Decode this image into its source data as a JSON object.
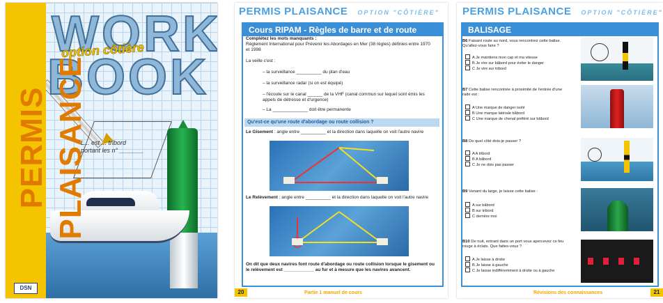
{
  "cover": {
    "sidebar_title": "PERMIS PLAISANCE",
    "title_line1": "WORK",
    "title_line2": "BOOK",
    "subtitle": "option côtière",
    "handwritten_note_line1": "L... est ... tribord",
    "handwritten_note_line2": "portant les n° _______",
    "publisher_logo": "DSN"
  },
  "page_left": {
    "header": "PERMIS PLAISANCE",
    "header_option": "OPTION \"CÔTIÈRE\"",
    "frame_title": "Cours RIPAM - Règles de barre et de route",
    "instruction": "Complétez les mots manquants :",
    "intro": "Règlement International pour Prévenir les Abordages en Mer (38 règles) définies entre 1970 et 1998",
    "watch_label": "La veille c'est :",
    "bullets": [
      "– la surveillance __________ du plan d'eau",
      "– la surveillance radar (si on est équipé)",
      "– l'écoute sur le canal ______ de la VHF (canal commun sur lequel sont émis les appels de détresse et d'urgence)",
      "– La ______________ doit être permanente"
    ],
    "section_heading": "Qu'est-ce qu'une route d'abordage ou route collision ?",
    "gisement_term": "Le Gisement",
    "gisement_text": " : angle entre __________ et la direction dans laquelle on voit l'autre navire",
    "relevement_term": "Le Relèvement",
    "relevement_text": " : angle entre __________ et la direction dans laquelle on voit l'autre navire",
    "conclusion": "On dit que deux navires font route d'abordage ou route collision lorsque le gisement ou le relèvement est ____________ au fur et à mesure que les navires avancent.",
    "page_number": "20",
    "footer": "Partie 1 manuel de cours"
  },
  "page_right": {
    "header": "PERMIS PLAISANCE",
    "header_option": "OPTION \"CÔTIÈRE\"",
    "frame_title": "BALISAGE",
    "questions": [
      {
        "num": "B6",
        "text": "Faisant route au nord, vous rencontrez cette balise. Qu'allez-vous faire ?",
        "choices": [
          "A  Je maintiens mon cap et ma vitesse",
          "B  Je vire sur bâbord pour éviter le danger",
          "C  Je vire sur tribord"
        ]
      },
      {
        "num": "B7",
        "text": "Cette balise rencontrée à proximité de l'entrée d'une rade est :",
        "choices": [
          "A  Une marque de danger isolé",
          "B  Une marque latérale bâbord",
          "C  Une marque de chenal préféré sur bâbord"
        ]
      },
      {
        "num": "B8",
        "text": "De quel côté dois-je passer ?",
        "choices": [
          "A  A tribord",
          "B  A bâbord",
          "C  Je ne dois pas passer"
        ]
      },
      {
        "num": "B9",
        "text": "Venant du large, je laisse cette balise :",
        "choices": [
          "A  sur bâbord",
          "B  sur tribord",
          "C  derrière moi"
        ]
      },
      {
        "num": "B10",
        "text": "De nuit, entrant dans un port vous apercevez ce feu rouge à éclats. Que faites-vous ?",
        "choices": [
          "A  Je laisse à droite",
          "B  Je laisse à gauche",
          "C  Je laisse indifféremment à droite ou à gauche"
        ]
      }
    ],
    "page_number": "21",
    "footer": "Révisions des connaissances"
  }
}
